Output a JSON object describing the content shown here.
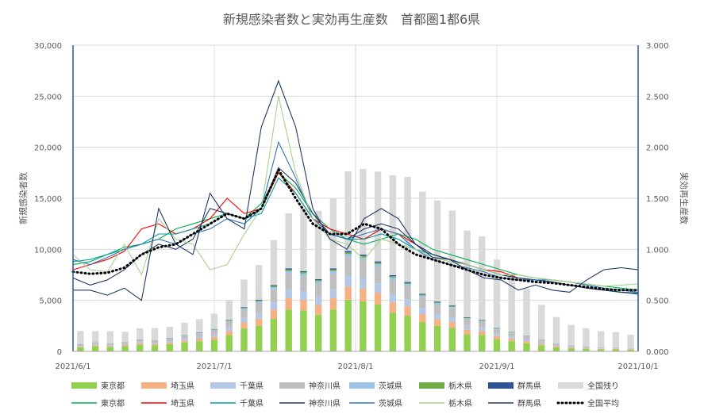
{
  "chart_data": {
    "type": "bar+line",
    "title": "新規感染者数と実効再生産数　首都圏1都6県",
    "ylabel": "新規感染者数",
    "y2label": "実効再生産数",
    "ylim": [
      0,
      30000
    ],
    "y2lim": [
      0,
      3.0
    ],
    "yticks": [
      "0",
      "5,000",
      "10,000",
      "15,000",
      "20,000",
      "25,000",
      "30,000"
    ],
    "y2ticks": [
      "0.000",
      "0.500",
      "1.000",
      "1.500",
      "2.000",
      "2.500",
      "3.000"
    ],
    "xticks": [
      "2021/6/1",
      "2021/7/1",
      "2021/8/1",
      "2021/9/1",
      "2021/10/1"
    ],
    "x_start": "2021-06-01",
    "x_end": "2021-10-01",
    "grid": true,
    "legend_position": "bottom",
    "bar_series": [
      {
        "name": "東京都",
        "color": "#92d050",
        "values": [
          400,
          500,
          440,
          510,
          650,
          600,
          720,
          870,
          1000,
          1140,
          1600,
          2270,
          2500,
          3200,
          4100,
          4000,
          3600,
          4100,
          5060,
          4900,
          4600,
          3800,
          3500,
          2900,
          2500,
          2300,
          1700,
          1600,
          1200,
          1000,
          800,
          600,
          400,
          300,
          250,
          200,
          200,
          180
        ]
      },
      {
        "name": "埼玉県",
        "color": "#f4b183",
        "values": [
          80,
          100,
          90,
          110,
          140,
          130,
          160,
          200,
          240,
          290,
          400,
          560,
          700,
          900,
          1100,
          1050,
          950,
          1100,
          1300,
          1250,
          1150,
          1000,
          900,
          750,
          650,
          600,
          450,
          400,
          300,
          250,
          200,
          150,
          100,
          80,
          60,
          50,
          50,
          40
        ]
      },
      {
        "name": "千葉県",
        "color": "#b4c7e7",
        "values": [
          60,
          80,
          70,
          90,
          110,
          100,
          130,
          160,
          190,
          230,
          320,
          450,
          560,
          720,
          880,
          850,
          760,
          880,
          1050,
          1000,
          920,
          800,
          720,
          600,
          520,
          480,
          360,
          320,
          240,
          200,
          160,
          120,
          80,
          64,
          48,
          40,
          40,
          32
        ]
      },
      {
        "name": "神奈川県",
        "color": "#bfbfbf",
        "values": [
          120,
          150,
          130,
          160,
          200,
          190,
          230,
          280,
          330,
          400,
          560,
          790,
          980,
          1260,
          1540,
          1480,
          1330,
          1540,
          1820,
          1750,
          1610,
          1400,
          1260,
          1050,
          910,
          840,
          630,
          560,
          420,
          350,
          280,
          210,
          140,
          110,
          84,
          70,
          70,
          56
        ]
      },
      {
        "name": "茨城県",
        "color": "#9dc3e6",
        "values": [
          20,
          25,
          22,
          27,
          34,
          32,
          39,
          48,
          56,
          68,
          95,
          134,
          167,
          214,
          262,
          252,
          226,
          262,
          309,
          298,
          274,
          238,
          214,
          179,
          155,
          143,
          107,
          95,
          71,
          60,
          48,
          36,
          24,
          19,
          14,
          12,
          12,
          10
        ]
      },
      {
        "name": "栃木県",
        "color": "#70ad47",
        "values": [
          10,
          13,
          11,
          14,
          17,
          16,
          20,
          24,
          28,
          34,
          48,
          67,
          84,
          107,
          131,
          126,
          113,
          131,
          155,
          149,
          137,
          119,
          107,
          90,
          78,
          72,
          54,
          48,
          36,
          30,
          24,
          18,
          12,
          10,
          7,
          6,
          6,
          5
        ]
      },
      {
        "name": "群馬県",
        "color": "#2f5597",
        "values": [
          10,
          12,
          11,
          13,
          16,
          15,
          18,
          22,
          26,
          31,
          43,
          60,
          75,
          97,
          118,
          114,
          102,
          118,
          140,
          135,
          124,
          107,
          97,
          81,
          70,
          65,
          48,
          43,
          32,
          27,
          22,
          16,
          11,
          9,
          6,
          5,
          5,
          4
        ]
      },
      {
        "name": "全国残り",
        "color": "#d9d9d9",
        "values": [
          1300,
          1100,
          1200,
          1000,
          1100,
          1200,
          1100,
          1200,
          1300,
          1500,
          1900,
          2700,
          3400,
          4400,
          5400,
          6100,
          6700,
          6900,
          7800,
          8400,
          8800,
          9800,
          10300,
          10000,
          9900,
          9300,
          8500,
          8200,
          6700,
          5700,
          4600,
          3400,
          2600,
          2000,
          1800,
          1600,
          1500,
          1300
        ]
      }
    ],
    "line_series": [
      {
        "name": "東京都",
        "color": "#00b050",
        "values": [
          0.85,
          0.88,
          0.95,
          1.02,
          1.05,
          1.1,
          1.2,
          1.25,
          1.3,
          1.35,
          1.3,
          1.45,
          1.75,
          1.6,
          1.35,
          1.2,
          1.1,
          1.05,
          1.1,
          1.15,
          1.1,
          1.0,
          0.95,
          0.9,
          0.85,
          0.8,
          0.75,
          0.72,
          0.7,
          0.68,
          0.66,
          0.64,
          0.62,
          0.6
        ]
      },
      {
        "name": "埼玉県",
        "color": "#ff0000",
        "values": [
          0.8,
          0.85,
          0.9,
          0.98,
          1.2,
          1.25,
          1.15,
          1.2,
          1.3,
          1.5,
          1.35,
          1.4,
          1.75,
          1.55,
          1.3,
          1.2,
          1.15,
          1.1,
          1.2,
          1.15,
          1.05,
          0.95,
          0.9,
          0.85,
          0.8,
          0.78,
          0.72,
          0.7,
          0.68,
          0.65,
          0.62,
          0.6,
          0.58,
          0.57
        ]
      },
      {
        "name": "千葉県",
        "color": "#00a0a0",
        "values": [
          0.88,
          0.9,
          0.95,
          1.0,
          1.05,
          1.15,
          1.15,
          1.2,
          1.25,
          1.35,
          1.3,
          1.35,
          1.7,
          1.55,
          1.3,
          1.15,
          1.1,
          1.1,
          1.15,
          1.1,
          1.0,
          0.95,
          0.9,
          0.85,
          0.8,
          0.75,
          0.72,
          0.7,
          0.68,
          0.65,
          0.62,
          0.6,
          0.58,
          0.56
        ]
      },
      {
        "name": "神奈川県",
        "color": "#1f3864",
        "values": [
          0.72,
          0.65,
          0.7,
          0.8,
          0.95,
          1.05,
          1.0,
          1.1,
          1.4,
          1.35,
          1.3,
          1.4,
          1.8,
          1.65,
          1.35,
          1.15,
          1.1,
          1.2,
          1.25,
          1.2,
          1.05,
          0.95,
          0.9,
          0.85,
          0.8,
          0.75,
          0.72,
          0.7,
          0.68,
          0.65,
          0.62,
          0.6,
          0.58,
          0.57
        ]
      },
      {
        "name": "茨城県",
        "color": "#2e75b6",
        "values": [
          0.9,
          0.85,
          0.92,
          1.0,
          1.05,
          1.1,
          1.05,
          1.15,
          1.2,
          1.3,
          1.25,
          1.4,
          2.05,
          1.7,
          1.3,
          1.15,
          1.1,
          1.15,
          1.2,
          1.15,
          1.0,
          0.9,
          0.85,
          0.82,
          0.78,
          0.72,
          0.7,
          0.7,
          0.7,
          0.68,
          0.65,
          0.62,
          0.6,
          0.58
        ]
      },
      {
        "name": "栃木県",
        "color": "#a9d18e",
        "values": [
          0.95,
          0.8,
          0.78,
          1.05,
          0.75,
          1.3,
          1.1,
          1.05,
          0.8,
          0.85,
          1.15,
          1.4,
          2.5,
          1.75,
          1.3,
          1.1,
          1.05,
          0.9,
          1.1,
          1.05,
          1.0,
          0.92,
          0.88,
          0.85,
          0.8,
          0.75,
          0.75,
          0.72,
          0.7,
          0.68,
          0.66,
          0.64,
          0.65,
          0.66
        ]
      },
      {
        "name": "群馬県",
        "color": "#203864",
        "values": [
          0.6,
          0.6,
          0.55,
          0.62,
          0.5,
          1.4,
          1.05,
          0.95,
          1.55,
          1.3,
          1.2,
          2.2,
          2.65,
          2.2,
          1.4,
          1.1,
          1.0,
          1.3,
          1.4,
          1.3,
          1.05,
          0.92,
          0.9,
          0.8,
          0.72,
          0.7,
          0.6,
          0.65,
          0.6,
          0.58,
          0.7,
          0.8,
          0.82,
          0.8
        ]
      }
    ],
    "average_series": {
      "name": "全国平均",
      "values": [
        0.78,
        0.76,
        0.77,
        0.82,
        0.95,
        1.02,
        1.05,
        1.15,
        1.25,
        1.35,
        1.3,
        1.4,
        1.78,
        1.5,
        1.25,
        1.15,
        1.15,
        1.25,
        1.2,
        1.05,
        0.95,
        0.9,
        0.85,
        0.8,
        0.75,
        0.72,
        0.7,
        0.68,
        0.67,
        0.65,
        0.63,
        0.61,
        0.6,
        0.6
      ]
    }
  }
}
